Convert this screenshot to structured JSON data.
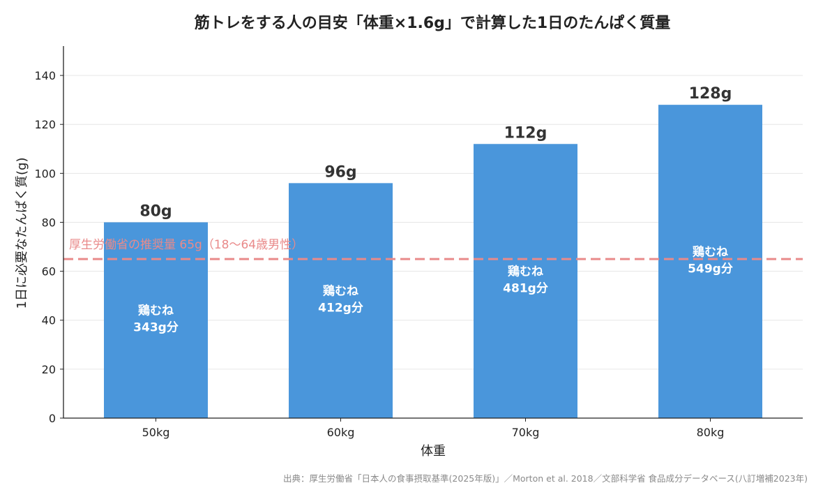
{
  "chart_data": {
    "type": "bar",
    "title": "筋トレをする人の目安「体重×1.6g」で計算した1日のたんぱく質量",
    "xlabel": "体重",
    "ylabel": "1日に必要なたんぱく質(g)",
    "categories": [
      "50kg",
      "60kg",
      "70kg",
      "80kg"
    ],
    "values": [
      80,
      96,
      112,
      128
    ],
    "value_labels": [
      "80g",
      "96g",
      "112g",
      "128g"
    ],
    "inner_labels": [
      [
        "鶏むね",
        "343g分"
      ],
      [
        "鶏むね",
        "412g分"
      ],
      [
        "鶏むね",
        "481g分"
      ],
      [
        "鶏むね",
        "549g分"
      ]
    ],
    "ylim": [
      0,
      152
    ],
    "yticks": [
      0,
      20,
      40,
      60,
      80,
      100,
      120,
      140
    ],
    "grid": true,
    "reference_line": {
      "value": 65,
      "label": "厚生労働省の推奨量 65g（18〜64歳男性）",
      "color": "#e98a8a"
    },
    "bar_color": "#4a96db",
    "source": "出典：厚生労働省「日本人の食事摂取基準(2025年版)」／Morton et al. 2018／文部科学省 食品成分データベース(八訂増補2023年)"
  }
}
